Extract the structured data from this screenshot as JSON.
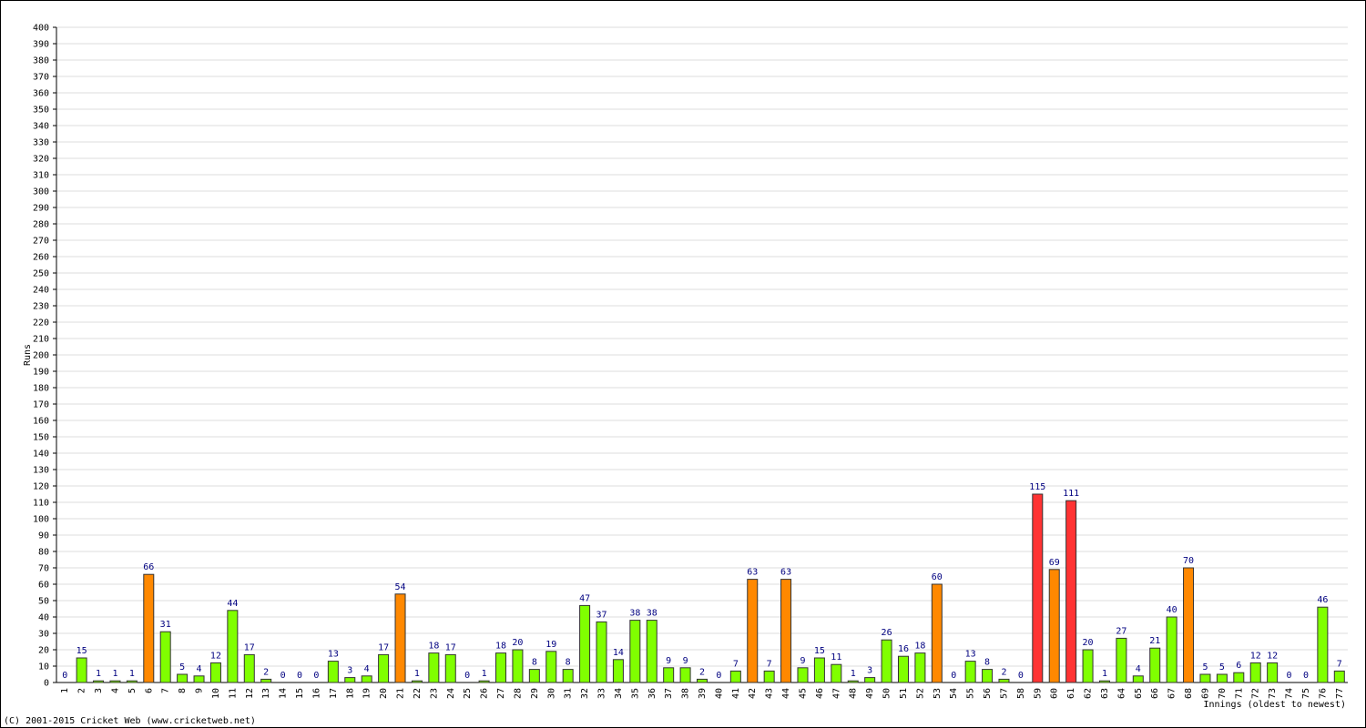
{
  "chart_data": {
    "type": "bar",
    "y_label": "Runs",
    "x_label": "Innings (oldest to newest)",
    "footer": "(C) 2001-2015 Cricket Web (www.cricketweb.net)",
    "categories": [
      "1",
      "2",
      "3",
      "4",
      "5",
      "6",
      "7",
      "8",
      "9",
      "10",
      "11",
      "12",
      "13",
      "14",
      "15",
      "16",
      "17",
      "18",
      "19",
      "20",
      "21",
      "22",
      "23",
      "24",
      "25",
      "26",
      "27",
      "28",
      "29",
      "30",
      "31",
      "32",
      "33",
      "34",
      "35",
      "36",
      "37",
      "38",
      "39",
      "40",
      "41",
      "42",
      "43",
      "44",
      "45",
      "46",
      "47",
      "48",
      "49",
      "50",
      "51",
      "52",
      "53",
      "54",
      "55",
      "56",
      "57",
      "58",
      "59",
      "60",
      "61",
      "62",
      "63",
      "64",
      "65",
      "66",
      "67",
      "68",
      "69",
      "70",
      "71",
      "72",
      "73",
      "74",
      "75",
      "76",
      "77"
    ],
    "values": [
      0,
      15,
      1,
      1,
      1,
      66,
      31,
      5,
      4,
      12,
      44,
      17,
      2,
      0,
      0,
      0,
      13,
      3,
      4,
      17,
      54,
      1,
      18,
      17,
      0,
      1,
      18,
      20,
      8,
      19,
      8,
      47,
      37,
      14,
      38,
      38,
      9,
      9,
      2,
      0,
      7,
      63,
      7,
      63,
      9,
      15,
      11,
      1,
      3,
      26,
      16,
      18,
      60,
      0,
      13,
      8,
      2,
      0,
      115,
      69,
      111,
      20,
      1,
      27,
      4,
      21,
      40,
      70,
      5,
      5,
      6,
      12,
      12,
      0,
      0,
      46,
      7
    ],
    "colors": [
      "#80ff00",
      "#80ff00",
      "#80ff00",
      "#80ff00",
      "#80ff00",
      "#ff8800",
      "#80ff00",
      "#80ff00",
      "#80ff00",
      "#80ff00",
      "#80ff00",
      "#80ff00",
      "#80ff00",
      "#80ff00",
      "#80ff00",
      "#80ff00",
      "#80ff00",
      "#80ff00",
      "#80ff00",
      "#80ff00",
      "#ff8800",
      "#80ff00",
      "#80ff00",
      "#80ff00",
      "#80ff00",
      "#80ff00",
      "#80ff00",
      "#80ff00",
      "#80ff00",
      "#80ff00",
      "#80ff00",
      "#80ff00",
      "#80ff00",
      "#80ff00",
      "#80ff00",
      "#80ff00",
      "#80ff00",
      "#80ff00",
      "#80ff00",
      "#80ff00",
      "#80ff00",
      "#ff8800",
      "#80ff00",
      "#ff8800",
      "#80ff00",
      "#80ff00",
      "#80ff00",
      "#80ff00",
      "#80ff00",
      "#80ff00",
      "#80ff00",
      "#80ff00",
      "#ff8800",
      "#80ff00",
      "#80ff00",
      "#80ff00",
      "#80ff00",
      "#80ff00",
      "#ff3333",
      "#ff8800",
      "#ff3333",
      "#80ff00",
      "#80ff00",
      "#80ff00",
      "#80ff00",
      "#80ff00",
      "#80ff00",
      "#ff8800",
      "#80ff00",
      "#80ff00",
      "#80ff00",
      "#80ff00",
      "#80ff00",
      "#80ff00",
      "#80ff00",
      "#80ff00",
      "#80ff00"
    ],
    "ylim": [
      0,
      400
    ],
    "yticks": [
      0,
      10,
      20,
      30,
      40,
      50,
      60,
      70,
      80,
      90,
      100,
      110,
      120,
      130,
      140,
      150,
      160,
      170,
      180,
      190,
      200,
      210,
      220,
      230,
      240,
      250,
      260,
      270,
      280,
      290,
      300,
      310,
      320,
      330,
      340,
      350,
      360,
      370,
      380,
      390,
      400
    ],
    "grid": true
  }
}
